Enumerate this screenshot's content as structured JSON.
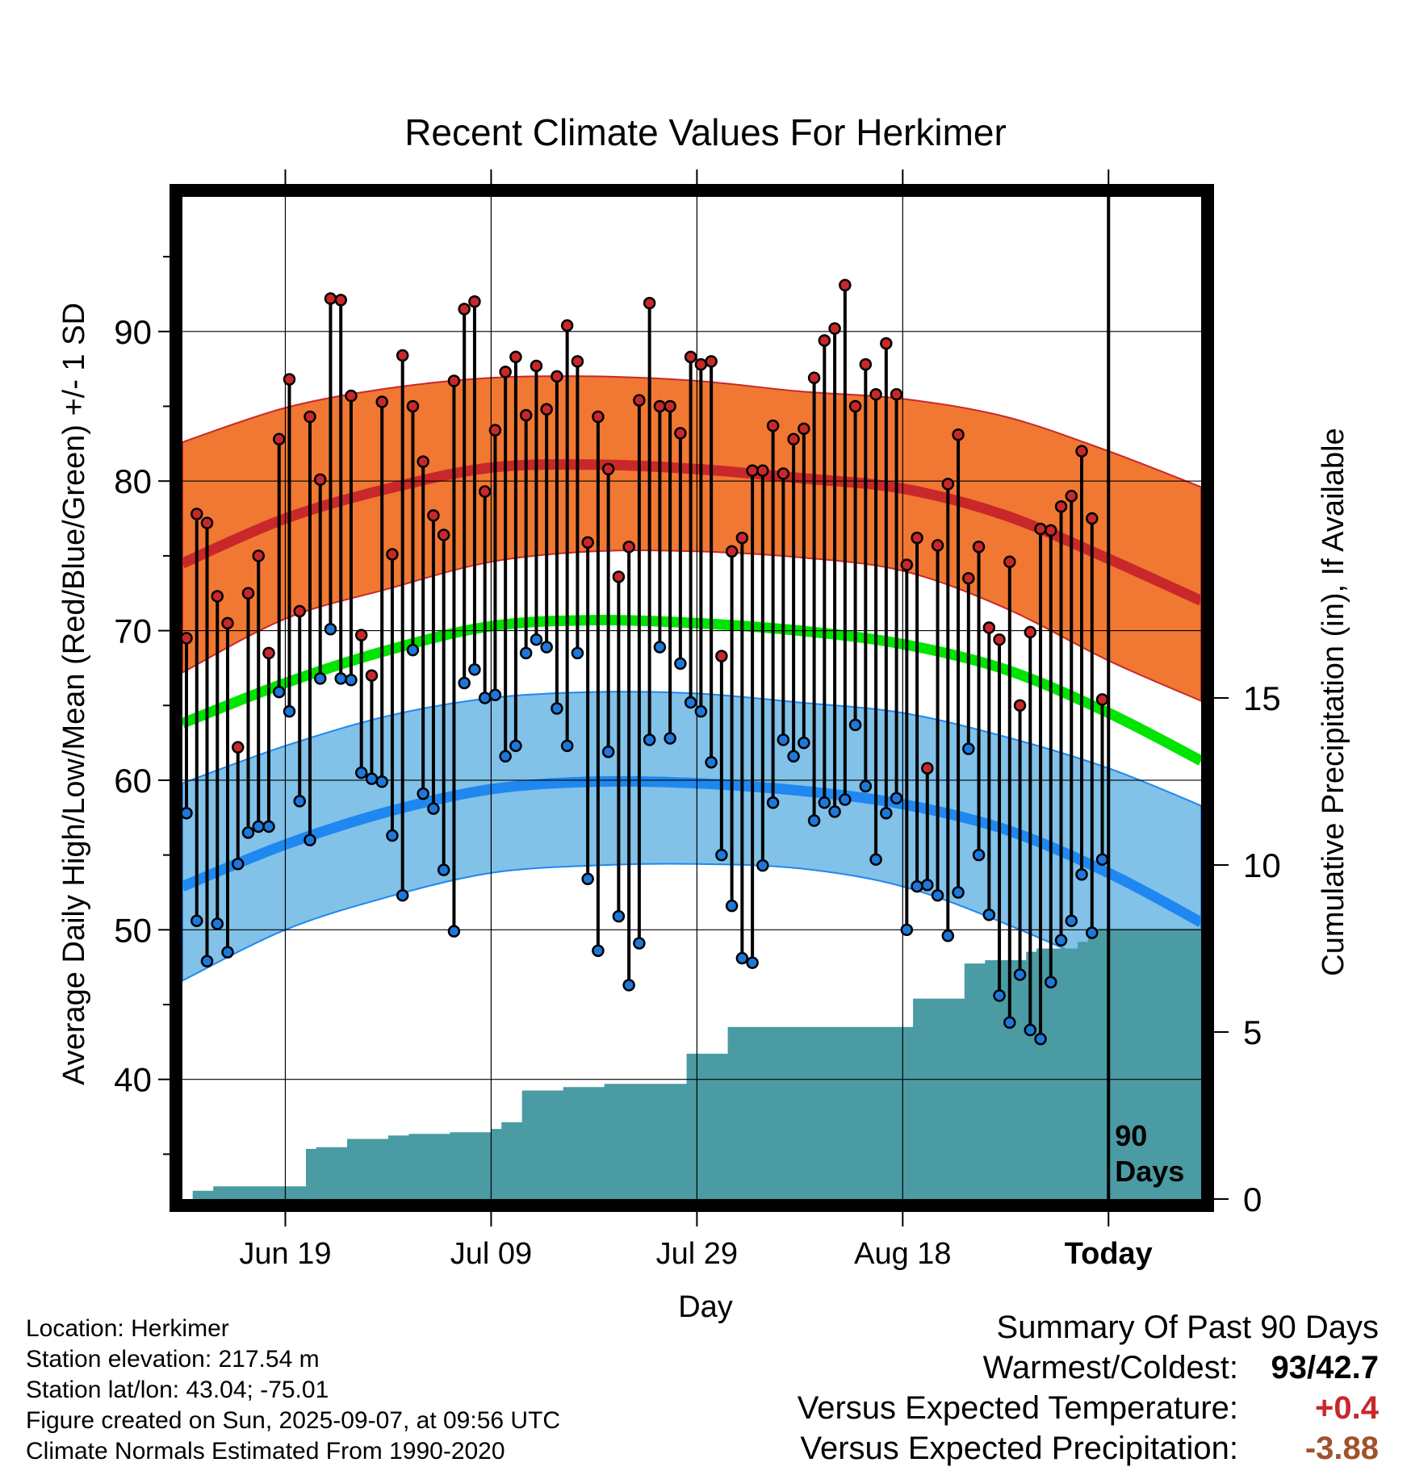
{
  "chart_data": {
    "type": "line",
    "title": "Recent Climate Values For Herkimer",
    "xlabel": "Day",
    "ylabel": "Average Daily High/Low/Mean (Red/Blue/Green) +/- 1 SD",
    "y2label": "Cumulative Precipitation (in), If Available",
    "ylim": [
      32,
      99
    ],
    "y_ticks": [
      40,
      50,
      60,
      70,
      80,
      90
    ],
    "y_tick_labels": [
      "40",
      "50",
      "60",
      "70",
      "80",
      "90"
    ],
    "y2lim": [
      0,
      30
    ],
    "y2_ticks": [
      0,
      5,
      10,
      15
    ],
    "y2_tick_labels": [
      "0",
      "5",
      "10",
      "15"
    ],
    "x_start": "2025-06-09",
    "x_end": "2025-09-16",
    "x_tick_dates": [
      "2025-06-19",
      "2025-07-09",
      "2025-07-29",
      "2025-08-18",
      "2025-09-07"
    ],
    "x_tick_labels": [
      "Jun 19",
      "Jul 09",
      "Jul 29",
      "Aug 18",
      "Today"
    ],
    "today": "2025-09-07",
    "today_label": "90 Days",
    "grid": true,
    "series": [
      {
        "name": "High",
        "color": "#c8282a",
        "dates": [
          "2025-06-09",
          "2025-06-10",
          "2025-06-11",
          "2025-06-12",
          "2025-06-13",
          "2025-06-14",
          "2025-06-15",
          "2025-06-16",
          "2025-06-17",
          "2025-06-18",
          "2025-06-19",
          "2025-06-20",
          "2025-06-21",
          "2025-06-22",
          "2025-06-23",
          "2025-06-24",
          "2025-06-25",
          "2025-06-26",
          "2025-06-27",
          "2025-06-28",
          "2025-06-29",
          "2025-06-30",
          "2025-07-01",
          "2025-07-02",
          "2025-07-03",
          "2025-07-04",
          "2025-07-05",
          "2025-07-06",
          "2025-07-07",
          "2025-07-08",
          "2025-07-09",
          "2025-07-10",
          "2025-07-11",
          "2025-07-12",
          "2025-07-13",
          "2025-07-14",
          "2025-07-15",
          "2025-07-16",
          "2025-07-17",
          "2025-07-18",
          "2025-07-19",
          "2025-07-20",
          "2025-07-21",
          "2025-07-22",
          "2025-07-23",
          "2025-07-24",
          "2025-07-25",
          "2025-07-26",
          "2025-07-27",
          "2025-07-28",
          "2025-07-29",
          "2025-07-30",
          "2025-07-31",
          "2025-08-01",
          "2025-08-02",
          "2025-08-03",
          "2025-08-04",
          "2025-08-05",
          "2025-08-06",
          "2025-08-07",
          "2025-08-08",
          "2025-08-09",
          "2025-08-10",
          "2025-08-11",
          "2025-08-12",
          "2025-08-13",
          "2025-08-14",
          "2025-08-15",
          "2025-08-16",
          "2025-08-17",
          "2025-08-18",
          "2025-08-19",
          "2025-08-20",
          "2025-08-21",
          "2025-08-22",
          "2025-08-23",
          "2025-08-24",
          "2025-08-25",
          "2025-08-26",
          "2025-08-27",
          "2025-08-28",
          "2025-08-29",
          "2025-08-30",
          "2025-08-31",
          "2025-09-01",
          "2025-09-02",
          "2025-09-03",
          "2025-09-04",
          "2025-09-05",
          "2025-09-06"
        ],
        "values": [
          69.5,
          77.8,
          77.2,
          72.3,
          70.5,
          62.2,
          72.5,
          75.0,
          68.5,
          82.8,
          86.8,
          71.3,
          84.3,
          80.1,
          92.2,
          92.1,
          85.7,
          69.7,
          67.0,
          85.3,
          75.1,
          88.4,
          85.0,
          81.3,
          77.7,
          76.4,
          86.7,
          91.5,
          92.0,
          79.3,
          83.4,
          87.3,
          88.3,
          84.4,
          87.7,
          84.8,
          87.0,
          90.4,
          88.0,
          75.9,
          84.3,
          80.8,
          73.6,
          75.6,
          85.4,
          91.9,
          85.0,
          85.0,
          83.2,
          88.3,
          87.8,
          88.0,
          68.3,
          75.3,
          76.2,
          80.7,
          80.7,
          83.7,
          80.5,
          82.8,
          83.5,
          86.9,
          89.4,
          90.2,
          93.1,
          85.0,
          87.8,
          85.8,
          89.2,
          85.8,
          74.4,
          76.2,
          60.8,
          75.7,
          79.8,
          83.1,
          73.5,
          75.6,
          70.2,
          69.4,
          74.6,
          65.0,
          69.9,
          76.8,
          76.7,
          78.3,
          79.0,
          82.0,
          77.5,
          65.4
        ]
      },
      {
        "name": "Low",
        "color": "#1e78dc",
        "dates": [
          "2025-06-09",
          "2025-06-10",
          "2025-06-11",
          "2025-06-12",
          "2025-06-13",
          "2025-06-14",
          "2025-06-15",
          "2025-06-16",
          "2025-06-17",
          "2025-06-18",
          "2025-06-19",
          "2025-06-20",
          "2025-06-21",
          "2025-06-22",
          "2025-06-23",
          "2025-06-24",
          "2025-06-25",
          "2025-06-26",
          "2025-06-27",
          "2025-06-28",
          "2025-06-29",
          "2025-06-30",
          "2025-07-01",
          "2025-07-02",
          "2025-07-03",
          "2025-07-04",
          "2025-07-05",
          "2025-07-06",
          "2025-07-07",
          "2025-07-08",
          "2025-07-09",
          "2025-07-10",
          "2025-07-11",
          "2025-07-12",
          "2025-07-13",
          "2025-07-14",
          "2025-07-15",
          "2025-07-16",
          "2025-07-17",
          "2025-07-18",
          "2025-07-19",
          "2025-07-20",
          "2025-07-21",
          "2025-07-22",
          "2025-07-23",
          "2025-07-24",
          "2025-07-25",
          "2025-07-26",
          "2025-07-27",
          "2025-07-28",
          "2025-07-29",
          "2025-07-30",
          "2025-07-31",
          "2025-08-01",
          "2025-08-02",
          "2025-08-03",
          "2025-08-04",
          "2025-08-05",
          "2025-08-06",
          "2025-08-07",
          "2025-08-08",
          "2025-08-09",
          "2025-08-10",
          "2025-08-11",
          "2025-08-12",
          "2025-08-13",
          "2025-08-14",
          "2025-08-15",
          "2025-08-16",
          "2025-08-17",
          "2025-08-18",
          "2025-08-19",
          "2025-08-20",
          "2025-08-21",
          "2025-08-22",
          "2025-08-23",
          "2025-08-24",
          "2025-08-25",
          "2025-08-26",
          "2025-08-27",
          "2025-08-28",
          "2025-08-29",
          "2025-08-30",
          "2025-08-31",
          "2025-09-01",
          "2025-09-02",
          "2025-09-03",
          "2025-09-04",
          "2025-09-05",
          "2025-09-06"
        ],
        "values": [
          57.8,
          50.6,
          47.9,
          50.4,
          48.5,
          54.4,
          56.5,
          56.9,
          56.9,
          65.9,
          64.6,
          58.6,
          56.0,
          66.8,
          70.1,
          66.8,
          66.7,
          60.5,
          60.1,
          59.9,
          56.3,
          52.3,
          68.7,
          59.1,
          58.1,
          54.0,
          49.9,
          66.5,
          67.4,
          65.5,
          65.7,
          61.6,
          62.3,
          68.5,
          69.4,
          68.9,
          64.8,
          62.3,
          68.5,
          53.4,
          48.6,
          61.9,
          50.9,
          46.3,
          49.1,
          62.7,
          68.9,
          62.8,
          67.8,
          65.2,
          64.6,
          61.2,
          55.0,
          51.6,
          48.1,
          47.8,
          54.3,
          58.5,
          62.7,
          61.6,
          62.5,
          57.3,
          58.5,
          57.9,
          58.7,
          63.7,
          59.6,
          54.7,
          57.8,
          58.8,
          50.0,
          52.9,
          53.0,
          52.3,
          49.6,
          52.5,
          62.1,
          55.0,
          51.0,
          45.6,
          43.8,
          47.0,
          43.3,
          42.7,
          46.5,
          49.3,
          50.6,
          53.7,
          49.8,
          54.7
        ]
      }
    ],
    "normals": {
      "dates": [
        "2025-06-09",
        "2025-06-19",
        "2025-06-29",
        "2025-07-09",
        "2025-07-19",
        "2025-07-29",
        "2025-08-08",
        "2025-08-18",
        "2025-08-28",
        "2025-09-07",
        "2025-09-16"
      ],
      "high": [
        74.5,
        77.5,
        79.5,
        80.9,
        81.1,
        80.8,
        80.2,
        79.5,
        77.7,
        74.8,
        72.0
      ],
      "high_upper": [
        82.6,
        84.9,
        86.2,
        86.9,
        87.0,
        86.7,
        86.0,
        85.5,
        84.3,
        82.0,
        79.6
      ],
      "high_lower": [
        67.2,
        70.8,
        72.8,
        74.6,
        75.3,
        75.3,
        74.9,
        74.0,
        71.5,
        68.0,
        65.3
      ],
      "mean": [
        63.8,
        66.5,
        68.7,
        70.3,
        70.7,
        70.5,
        70.0,
        69.1,
        67.4,
        64.5,
        61.3
      ],
      "low": [
        52.9,
        55.7,
        57.9,
        59.4,
        59.9,
        59.8,
        59.3,
        58.4,
        56.7,
        53.8,
        50.5
      ],
      "low_upper": [
        59.8,
        62.3,
        64.3,
        65.5,
        65.9,
        65.8,
        65.2,
        64.5,
        62.9,
        60.8,
        58.3
      ],
      "low_lower": [
        46.6,
        50.0,
        52.2,
        53.8,
        54.3,
        54.4,
        54.1,
        52.9,
        50.4,
        47.3,
        43.5
      ]
    },
    "precipitation": {
      "dates": [
        "2025-06-09",
        "2025-06-10",
        "2025-06-12",
        "2025-06-21",
        "2025-06-22",
        "2025-06-25",
        "2025-06-26",
        "2025-06-29",
        "2025-07-01",
        "2025-07-05",
        "2025-07-09",
        "2025-07-10",
        "2025-07-12",
        "2025-07-16",
        "2025-07-20",
        "2025-07-27",
        "2025-07-28",
        "2025-07-30",
        "2025-08-01",
        "2025-08-18",
        "2025-08-19",
        "2025-08-23",
        "2025-08-24",
        "2025-08-26",
        "2025-08-29",
        "2025-08-30",
        "2025-08-31",
        "2025-09-01",
        "2025-09-02",
        "2025-09-04",
        "2025-09-05",
        "2025-09-06",
        "2025-09-16"
      ],
      "values": [
        0.0,
        0.25,
        0.38,
        1.5,
        1.55,
        1.8,
        1.8,
        1.9,
        1.95,
        2.0,
        2.1,
        2.3,
        3.25,
        3.35,
        3.45,
        3.45,
        4.35,
        4.35,
        5.15,
        5.15,
        6.0,
        6.0,
        7.05,
        7.15,
        7.15,
        7.4,
        7.5,
        7.5,
        7.5,
        7.7,
        8.0,
        8.1,
        8.1
      ],
      "color": "#4a9ba3"
    }
  },
  "info": {
    "location": "Location: Herkimer",
    "elevation": "Station elevation: 217.54 m",
    "latlon": "Station lat/lon: 43.04; -75.01",
    "created": "Figure created on Sun, 2025-09-07, at 09:56 UTC",
    "normals": "Climate Normals Estimated From 1990-2020"
  },
  "summary": {
    "title": "Summary Of Past 90 Days",
    "warmest_label": "Warmest/Coldest:",
    "warmest_value": "93",
    "coldest_value": "42.7",
    "temp_label": "Versus Expected Temperature:",
    "temp_value": "+0.4",
    "temp_color": "#c8282a",
    "precip_label": "Versus Expected Precipitation:",
    "precip_value": "-3.88",
    "precip_color": "#a0522d"
  },
  "colors": {
    "high_band": "#f07832",
    "high_line": "#c8282a",
    "mean_line": "#00e400",
    "low_band": "#82c1e8",
    "low_line": "#1e88f0",
    "high_point": "#c8282a",
    "low_point": "#1e78dc"
  }
}
